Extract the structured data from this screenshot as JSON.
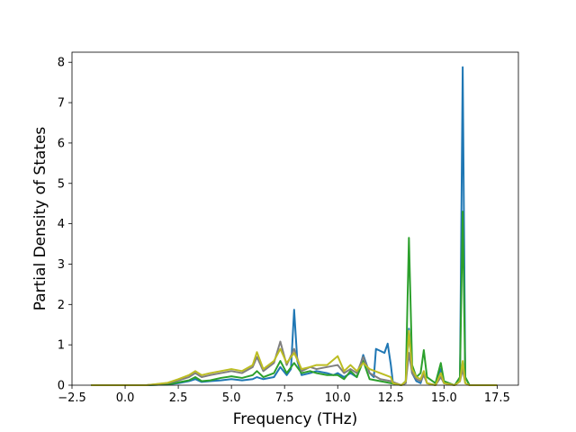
{
  "chart_data": {
    "type": "line",
    "title": "",
    "xlabel": "Frequency (THz)",
    "ylabel": "Partial Density of States",
    "xlim": [
      -2.5,
      18.5
    ],
    "ylim": [
      0,
      8.25
    ],
    "xticks": [
      -2.5,
      0.0,
      2.5,
      5.0,
      7.5,
      10.0,
      12.5,
      15.0,
      17.5
    ],
    "xtick_labels": [
      "−2.5",
      "0.0",
      "2.5",
      "5.0",
      "7.5",
      "10.0",
      "12.5",
      "15.0",
      "17.5"
    ],
    "yticks": [
      0,
      1,
      2,
      3,
      4,
      5,
      6,
      7,
      8
    ],
    "ytick_labels": [
      "0",
      "1",
      "2",
      "3",
      "4",
      "5",
      "6",
      "7",
      "8"
    ],
    "grid": false,
    "legend": "none",
    "series": [
      {
        "color": "#1f77b4",
        "points": [
          [
            -1.6,
            0
          ],
          [
            1.0,
            0
          ],
          [
            2.0,
            0.02
          ],
          [
            2.5,
            0.05
          ],
          [
            3.0,
            0.1
          ],
          [
            3.3,
            0.15
          ],
          [
            3.6,
            0.08
          ],
          [
            4.0,
            0.1
          ],
          [
            4.5,
            0.12
          ],
          [
            5.0,
            0.15
          ],
          [
            5.5,
            0.12
          ],
          [
            6.0,
            0.15
          ],
          [
            6.2,
            0.2
          ],
          [
            6.5,
            0.15
          ],
          [
            7.0,
            0.2
          ],
          [
            7.3,
            0.45
          ],
          [
            7.6,
            0.25
          ],
          [
            7.8,
            0.4
          ],
          [
            7.95,
            1.87
          ],
          [
            8.1,
            0.6
          ],
          [
            8.3,
            0.25
          ],
          [
            8.7,
            0.3
          ],
          [
            9.0,
            0.35
          ],
          [
            9.5,
            0.3
          ],
          [
            9.8,
            0.25
          ],
          [
            10.0,
            0.3
          ],
          [
            10.3,
            0.2
          ],
          [
            10.6,
            0.3
          ],
          [
            10.9,
            0.2
          ],
          [
            11.2,
            0.75
          ],
          [
            11.5,
            0.3
          ],
          [
            11.7,
            0.2
          ],
          [
            11.8,
            0.9
          ],
          [
            12.0,
            0.85
          ],
          [
            12.2,
            0.8
          ],
          [
            12.35,
            1.03
          ],
          [
            12.5,
            0.5
          ],
          [
            12.6,
            0.05
          ],
          [
            13.0,
            0
          ],
          [
            13.2,
            0.05
          ],
          [
            13.35,
            1.4
          ],
          [
            13.5,
            0.3
          ],
          [
            13.7,
            0.1
          ],
          [
            13.9,
            0.05
          ],
          [
            14.05,
            0.3
          ],
          [
            14.2,
            0.05
          ],
          [
            14.6,
            0
          ],
          [
            14.85,
            0.4
          ],
          [
            15.0,
            0.05
          ],
          [
            15.5,
            0
          ],
          [
            15.75,
            0.1
          ],
          [
            15.88,
            7.88
          ],
          [
            16.0,
            0.2
          ],
          [
            16.2,
            0
          ],
          [
            17.5,
            0
          ]
        ]
      },
      {
        "color": "#2ca02c",
        "points": [
          [
            -1.6,
            0
          ],
          [
            1.0,
            0
          ],
          [
            2.0,
            0.02
          ],
          [
            2.5,
            0.07
          ],
          [
            3.0,
            0.12
          ],
          [
            3.3,
            0.2
          ],
          [
            3.6,
            0.1
          ],
          [
            4.0,
            0.12
          ],
          [
            4.5,
            0.18
          ],
          [
            5.0,
            0.22
          ],
          [
            5.5,
            0.18
          ],
          [
            6.0,
            0.25
          ],
          [
            6.2,
            0.35
          ],
          [
            6.5,
            0.2
          ],
          [
            7.0,
            0.3
          ],
          [
            7.3,
            0.6
          ],
          [
            7.6,
            0.3
          ],
          [
            7.95,
            0.55
          ],
          [
            8.3,
            0.3
          ],
          [
            8.7,
            0.35
          ],
          [
            9.0,
            0.3
          ],
          [
            9.5,
            0.25
          ],
          [
            10.0,
            0.25
          ],
          [
            10.3,
            0.15
          ],
          [
            10.6,
            0.35
          ],
          [
            10.9,
            0.2
          ],
          [
            11.2,
            0.6
          ],
          [
            11.5,
            0.15
          ],
          [
            12.0,
            0.1
          ],
          [
            12.5,
            0.05
          ],
          [
            13.0,
            0
          ],
          [
            13.2,
            0.1
          ],
          [
            13.35,
            3.65
          ],
          [
            13.5,
            0.5
          ],
          [
            13.7,
            0.2
          ],
          [
            13.9,
            0.3
          ],
          [
            14.05,
            0.87
          ],
          [
            14.2,
            0.2
          ],
          [
            14.6,
            0.05
          ],
          [
            14.85,
            0.55
          ],
          [
            15.0,
            0.1
          ],
          [
            15.5,
            0
          ],
          [
            15.75,
            0.2
          ],
          [
            15.88,
            4.3
          ],
          [
            16.0,
            0.2
          ],
          [
            16.2,
            0
          ],
          [
            17.5,
            0
          ]
        ]
      },
      {
        "color": "#7f7f7f",
        "points": [
          [
            -1.6,
            0
          ],
          [
            1.0,
            0
          ],
          [
            2.0,
            0.05
          ],
          [
            2.5,
            0.12
          ],
          [
            3.0,
            0.2
          ],
          [
            3.3,
            0.3
          ],
          [
            3.6,
            0.2
          ],
          [
            4.0,
            0.25
          ],
          [
            4.5,
            0.3
          ],
          [
            5.0,
            0.35
          ],
          [
            5.5,
            0.3
          ],
          [
            6.0,
            0.45
          ],
          [
            6.2,
            0.7
          ],
          [
            6.5,
            0.35
          ],
          [
            7.0,
            0.55
          ],
          [
            7.3,
            1.08
          ],
          [
            7.6,
            0.5
          ],
          [
            7.95,
            0.9
          ],
          [
            8.3,
            0.35
          ],
          [
            8.7,
            0.45
          ],
          [
            9.0,
            0.4
          ],
          [
            9.5,
            0.45
          ],
          [
            10.0,
            0.5
          ],
          [
            10.3,
            0.3
          ],
          [
            10.6,
            0.4
          ],
          [
            10.9,
            0.3
          ],
          [
            11.2,
            0.7
          ],
          [
            11.5,
            0.3
          ],
          [
            12.0,
            0.15
          ],
          [
            12.5,
            0.1
          ],
          [
            13.0,
            0
          ],
          [
            13.2,
            0.05
          ],
          [
            13.35,
            0.8
          ],
          [
            13.5,
            0.3
          ],
          [
            13.7,
            0.15
          ],
          [
            13.9,
            0.1
          ],
          [
            14.05,
            0.25
          ],
          [
            14.2,
            0.05
          ],
          [
            14.6,
            0
          ],
          [
            14.85,
            0.2
          ],
          [
            15.0,
            0.05
          ],
          [
            15.5,
            0
          ],
          [
            15.75,
            0.1
          ],
          [
            15.88,
            0.4
          ],
          [
            16.0,
            0.05
          ],
          [
            16.2,
            0
          ],
          [
            17.5,
            0
          ]
        ]
      },
      {
        "color": "#bcbd22",
        "points": [
          [
            -1.6,
            0
          ],
          [
            1.0,
            0
          ],
          [
            2.0,
            0.06
          ],
          [
            2.5,
            0.15
          ],
          [
            3.0,
            0.25
          ],
          [
            3.3,
            0.35
          ],
          [
            3.6,
            0.25
          ],
          [
            4.0,
            0.3
          ],
          [
            4.5,
            0.35
          ],
          [
            5.0,
            0.4
          ],
          [
            5.5,
            0.35
          ],
          [
            6.0,
            0.5
          ],
          [
            6.2,
            0.82
          ],
          [
            6.5,
            0.4
          ],
          [
            7.0,
            0.6
          ],
          [
            7.3,
            0.9
          ],
          [
            7.6,
            0.55
          ],
          [
            7.95,
            0.8
          ],
          [
            8.3,
            0.4
          ],
          [
            8.7,
            0.45
          ],
          [
            9.0,
            0.5
          ],
          [
            9.5,
            0.5
          ],
          [
            10.0,
            0.72
          ],
          [
            10.3,
            0.35
          ],
          [
            10.6,
            0.5
          ],
          [
            10.9,
            0.35
          ],
          [
            11.2,
            0.55
          ],
          [
            11.5,
            0.4
          ],
          [
            12.0,
            0.3
          ],
          [
            12.5,
            0.2
          ],
          [
            12.6,
            0.05
          ],
          [
            13.0,
            0
          ],
          [
            13.2,
            0.1
          ],
          [
            13.35,
            1.35
          ],
          [
            13.5,
            0.4
          ],
          [
            13.7,
            0.2
          ],
          [
            13.9,
            0.15
          ],
          [
            14.05,
            0.35
          ],
          [
            14.2,
            0.05
          ],
          [
            14.6,
            0
          ],
          [
            14.85,
            0.3
          ],
          [
            15.0,
            0.05
          ],
          [
            15.5,
            0
          ],
          [
            15.75,
            0.1
          ],
          [
            15.88,
            0.6
          ],
          [
            16.0,
            0.05
          ],
          [
            16.2,
            0
          ],
          [
            17.5,
            0
          ]
        ]
      }
    ]
  }
}
